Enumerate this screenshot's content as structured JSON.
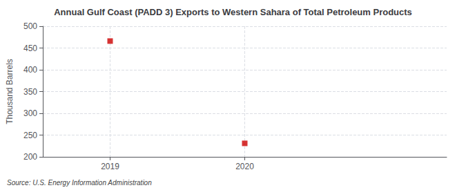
{
  "chart_data": {
    "type": "scatter",
    "title": "Annual Gulf Coast (PADD 3) Exports to Western Sahara of Total Petroleum Products",
    "ylabel": "Thousand Barrels",
    "source": "Source: U.S. Energy Information Administration",
    "x": [
      2019,
      2020
    ],
    "values": [
      466,
      231
    ],
    "color": "#cc0000",
    "marker": "square",
    "xlim": [
      2018.5,
      2021.5
    ],
    "ylim": [
      200,
      500
    ],
    "xticks": [
      2019,
      2020
    ],
    "yticks": [
      200,
      250,
      300,
      350,
      400,
      450,
      500
    ],
    "grid": true
  }
}
